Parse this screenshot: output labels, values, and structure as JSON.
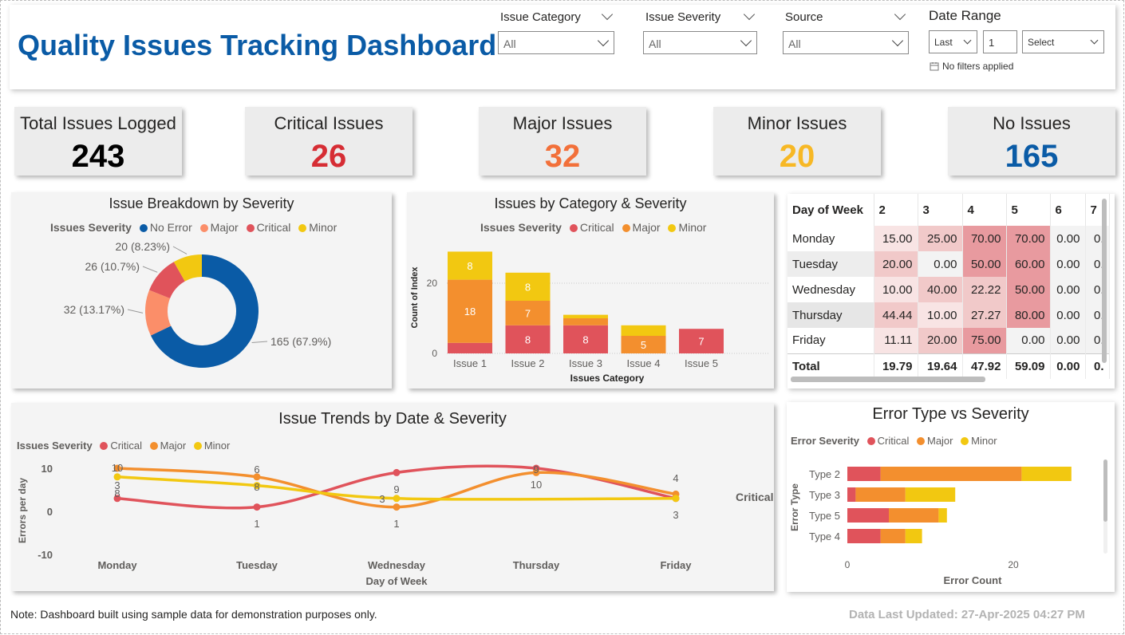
{
  "header": {
    "title": "Quality Issues Tracking Dashboard",
    "slicers": [
      {
        "label": "Issue Category",
        "value": "All"
      },
      {
        "label": "Issue Severity",
        "value": "All"
      },
      {
        "label": "Source",
        "value": "All"
      }
    ],
    "date_range": {
      "label": "Date Range",
      "period": "Last",
      "count": "1",
      "unit": "Select",
      "status": "No filters applied"
    }
  },
  "kpis": [
    {
      "label": "Total Issues Logged",
      "value": "243",
      "color": "#000000"
    },
    {
      "label": "Critical Issues",
      "value": "26",
      "color": "#d62d34"
    },
    {
      "label": "Major Issues",
      "value": "32",
      "color": "#f2703a"
    },
    {
      "label": "Minor Issues",
      "value": "20",
      "color": "#f7b825"
    },
    {
      "label": "No Issues",
      "value": "165",
      "color": "#0a5ba6"
    }
  ],
  "donut": {
    "title": "Issue Breakdown by Severity",
    "legend_title": "Issues Severity",
    "legend": [
      "No Error",
      "Major",
      "Critical",
      "Minor"
    ],
    "labels": [
      "165 (67.9%)",
      "32 (13.17%)",
      "26 (10.7%)",
      "20 (8.23%)"
    ]
  },
  "category_chart": {
    "title": "Issues by Category & Severity",
    "legend_title": "Issues Severity",
    "legend": [
      "Critical",
      "Major",
      "Minor"
    ],
    "ylabel": "Count of Index",
    "xlabel": "Issues Category",
    "yticks": [
      "0",
      "20"
    ],
    "categories": [
      "Issue 1",
      "Issue 2",
      "Issue 3",
      "Issue 4",
      "Issue 5"
    ]
  },
  "matrix": {
    "corner": "Day of Week",
    "columns": [
      "2",
      "3",
      "4",
      "5",
      "6",
      "7"
    ],
    "rows": [
      {
        "label": "Monday",
        "cells": [
          "15.00",
          "25.00",
          "70.00",
          "70.00",
          "0.00",
          "0."
        ]
      },
      {
        "label": "Tuesday",
        "cells": [
          "20.00",
          "0.00",
          "50.00",
          "60.00",
          "0.00",
          "0."
        ]
      },
      {
        "label": "Wednesday",
        "cells": [
          "10.00",
          "40.00",
          "22.22",
          "50.00",
          "0.00",
          "0."
        ]
      },
      {
        "label": "Thursday",
        "cells": [
          "44.44",
          "10.00",
          "27.27",
          "80.00",
          "0.00",
          "0."
        ]
      },
      {
        "label": "Friday",
        "cells": [
          "11.11",
          "20.00",
          "75.00",
          "0.00",
          "0.00",
          "0."
        ]
      }
    ],
    "total": {
      "label": "Total",
      "cells": [
        "19.79",
        "19.64",
        "47.92",
        "59.09",
        "0.00",
        "0."
      ]
    }
  },
  "trend_chart": {
    "title": "Issue Trends by Date & Severity",
    "legend_title": "Issues Severity",
    "legend": [
      "Critical",
      "Major",
      "Minor"
    ],
    "ylabel": "Errors per day",
    "xlabel": "Day of Week",
    "yticks": [
      "10",
      "0",
      "-10"
    ],
    "end_label": "Critical"
  },
  "error_chart": {
    "title": "Error Type vs Severity",
    "legend_title": "Error Severity",
    "legend": [
      "Critical",
      "Major",
      "Minor"
    ],
    "ylabel": "Error Type",
    "xlabel": "Error Count",
    "xticks": [
      "0",
      "20"
    ]
  },
  "footer": {
    "note": "Note: Dashboard built using sample data for demonstration purposes only.",
    "updated": "Data Last Updated: 27-Apr-2025 04:27 PM"
  },
  "colors": {
    "critical": "#e0535b",
    "major": "#f38f2e",
    "minor": "#f2c811",
    "no_error": "#0a5ba6",
    "major_light": "#fb8e69"
  },
  "chart_data": [
    {
      "type": "pie",
      "title": "Issue Breakdown by Severity",
      "categories": [
        "No Error",
        "Major",
        "Critical",
        "Minor"
      ],
      "values": [
        165,
        32,
        26,
        20
      ],
      "percent_labels": [
        "67.9%",
        "13.17%",
        "10.7%",
        "8.23%"
      ],
      "legend": "top"
    },
    {
      "type": "bar",
      "title": "Issues by Category & Severity",
      "categories": [
        "Issue 1",
        "Issue 2",
        "Issue 3",
        "Issue 4",
        "Issue 5"
      ],
      "series": [
        {
          "name": "Critical",
          "values": [
            3,
            8,
            8,
            0,
            7
          ]
        },
        {
          "name": "Major",
          "values": [
            18,
            7,
            2,
            5,
            0
          ]
        },
        {
          "name": "Minor",
          "values": [
            8,
            8,
            1,
            3,
            0
          ]
        }
      ],
      "data_labels": [
        {
          "series": "Critical",
          "category": "Issue 2",
          "text": "8"
        },
        {
          "series": "Critical",
          "category": "Issue 3",
          "text": "8"
        },
        {
          "series": "Critical",
          "category": "Issue 5",
          "text": "7"
        },
        {
          "series": "Major",
          "category": "Issue 1",
          "text": "18"
        },
        {
          "series": "Major",
          "category": "Issue 2",
          "text": "7"
        },
        {
          "series": "Major",
          "category": "Issue 4",
          "text": "5"
        },
        {
          "series": "Minor",
          "category": "Issue 1",
          "text": "8"
        },
        {
          "series": "Minor",
          "category": "Issue 2",
          "text": "8"
        }
      ],
      "xlabel": "Issues Category",
      "ylabel": "Count of Index",
      "ylim": [
        0,
        32
      ],
      "stacked": true,
      "grid": true
    },
    {
      "type": "line",
      "title": "Issue Trends by Date & Severity",
      "categories": [
        "Monday",
        "Tuesday",
        "Wednesday",
        "Thursday",
        "Friday"
      ],
      "series": [
        {
          "name": "Critical",
          "values": [
            3,
            1,
            9,
            10,
            3
          ]
        },
        {
          "name": "Major",
          "values": [
            10,
            8,
            1,
            9,
            4
          ]
        },
        {
          "name": "Minor",
          "values": [
            8,
            6,
            3,
            null,
            3
          ]
        }
      ],
      "point_labels": [
        {
          "category": "Monday",
          "texts": [
            "10",
            "3",
            "8"
          ]
        },
        {
          "category": "Tuesday",
          "texts": [
            "6",
            "8",
            "1"
          ]
        },
        {
          "category": "Wednesday",
          "texts": [
            "9",
            "3",
            "1"
          ]
        },
        {
          "category": "Thursday",
          "texts": [
            "9",
            "10"
          ]
        },
        {
          "category": "Friday",
          "texts": [
            "4",
            "3"
          ]
        }
      ],
      "xlabel": "Day of Week",
      "ylabel": "Errors per day",
      "ylim": [
        -10,
        10
      ],
      "smooth": true
    },
    {
      "type": "bar",
      "orientation": "horizontal",
      "title": "Error Type vs Severity",
      "categories": [
        "Type 2",
        "Type 3",
        "Type 5",
        "Type 4"
      ],
      "series": [
        {
          "name": "Critical",
          "values": [
            4,
            1,
            5,
            4
          ]
        },
        {
          "name": "Major",
          "values": [
            17,
            6,
            6,
            3
          ]
        },
        {
          "name": "Minor",
          "values": [
            6,
            6,
            1,
            2
          ]
        }
      ],
      "xlabel": "Error Count",
      "ylabel": "Error Type",
      "xlim": [
        0,
        27
      ],
      "stacked": true
    }
  ]
}
